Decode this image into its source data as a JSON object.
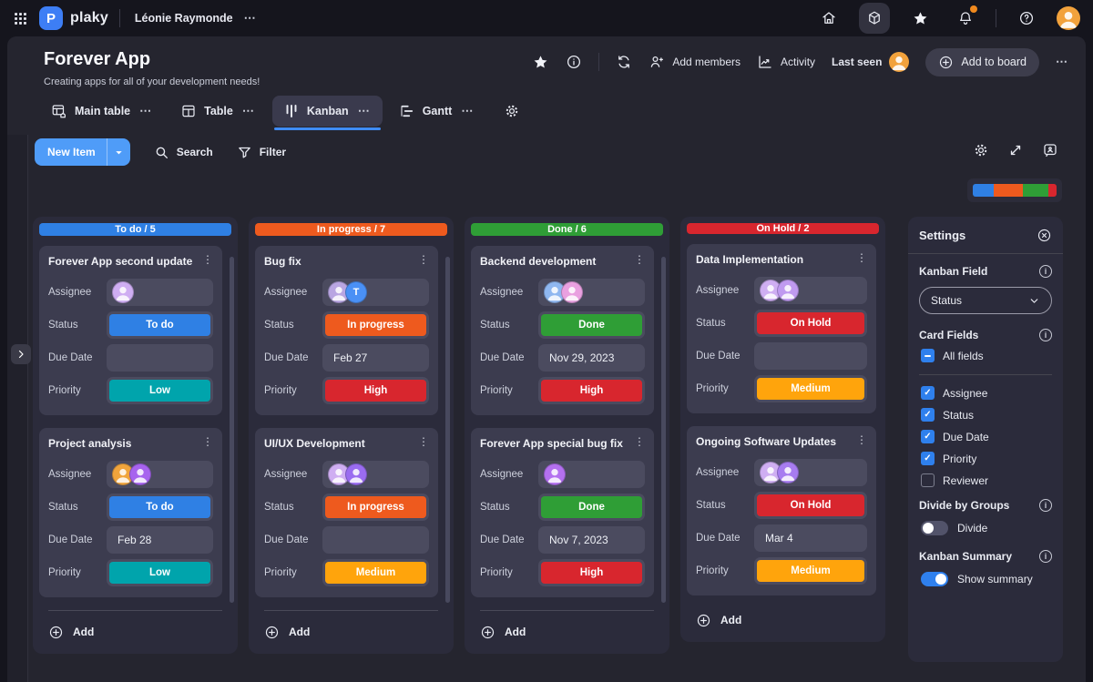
{
  "topbar": {
    "brand": "plaky",
    "workspace": "Léonie Raymonde",
    "more": "⋯",
    "notification_badge": true,
    "accent": "#3d7ef5"
  },
  "header": {
    "title": "Forever App",
    "subtitle": "Creating apps for all of your development needs!",
    "add_members": "Add members",
    "activity": "Activity",
    "last_seen": "Last seen",
    "add_to_board": "Add to board",
    "more": "⋯"
  },
  "tabs": [
    {
      "id": "main-table",
      "label": "Main table",
      "icon": "main-table-icon",
      "active": false
    },
    {
      "id": "table",
      "label": "Table",
      "icon": "table-icon",
      "active": false
    },
    {
      "id": "kanban",
      "label": "Kanban",
      "icon": "kanban-icon",
      "active": true
    },
    {
      "id": "gantt",
      "label": "Gantt",
      "icon": "gantt-icon",
      "active": false
    }
  ],
  "toolbar": {
    "new_item": "New Item",
    "search": "Search",
    "filter": "Filter"
  },
  "summary_bar": {
    "total": 20,
    "segments": [
      {
        "status": "To do",
        "count": 5,
        "color": "#2f80e4"
      },
      {
        "status": "In progress",
        "count": 7,
        "color": "#ee5a1e"
      },
      {
        "status": "Done",
        "count": 6,
        "color": "#2f9e36"
      },
      {
        "status": "On Hold",
        "count": 2,
        "color": "#d8262e"
      }
    ]
  },
  "field_labels": [
    "Assignee",
    "Status",
    "Due Date",
    "Priority"
  ],
  "add_label": "Add",
  "columns": [
    {
      "header": "To do / 5",
      "color": "#2f80e4",
      "scrollbar": true,
      "divider": true,
      "cards": [
        {
          "title": "Forever App second update",
          "assignees": [
            {
              "bg": "#cfaef2"
            }
          ],
          "status": {
            "label": "To do",
            "color": "#2f80e4"
          },
          "due_date": "",
          "priority": {
            "label": "Low",
            "color": "#00a4ac"
          }
        },
        {
          "title": "Project analysis",
          "assignees": [
            {
              "bg": "#f0a43c"
            },
            {
              "bg": "#a763ee"
            }
          ],
          "status": {
            "label": "To do",
            "color": "#2f80e4"
          },
          "due_date": "Feb 28",
          "priority": {
            "label": "Low",
            "color": "#00a4ac"
          }
        }
      ]
    },
    {
      "header": "In progress / 7",
      "color": "#ee5a1e",
      "scrollbar": true,
      "divider": true,
      "cards": [
        {
          "title": "Bug fix",
          "assignees": [
            {
              "bg": "#b9a6e2"
            },
            {
              "bg": "#4a90f5",
              "initial": "T"
            }
          ],
          "status": {
            "label": "In progress",
            "color": "#ee5a1e"
          },
          "due_date": "Feb 27",
          "priority": {
            "label": "High",
            "color": "#d8262e"
          }
        },
        {
          "title": "UI/UX Development",
          "assignees": [
            {
              "bg": "#cfaef2"
            },
            {
              "bg": "#9a6cf0"
            }
          ],
          "status": {
            "label": "In progress",
            "color": "#ee5a1e"
          },
          "due_date": "",
          "priority": {
            "label": "Medium",
            "color": "#ffa40c"
          }
        }
      ]
    },
    {
      "header": "Done / 6",
      "color": "#2f9e36",
      "scrollbar": true,
      "divider": true,
      "cards": [
        {
          "title": "Backend development",
          "assignees": [
            {
              "bg": "#8fb7f0"
            },
            {
              "bg": "#e9a0e0"
            }
          ],
          "status": {
            "label": "Done",
            "color": "#2f9e36"
          },
          "due_date": "Nov 29, 2023",
          "priority": {
            "label": "High",
            "color": "#d8262e"
          }
        },
        {
          "title": "Forever App special bug fix",
          "assignees": [
            {
              "bg": "#b470f0"
            }
          ],
          "status": {
            "label": "Done",
            "color": "#2f9e36"
          },
          "due_date": "Nov 7, 2023",
          "priority": {
            "label": "High",
            "color": "#d8262e"
          }
        }
      ]
    },
    {
      "header": "On Hold / 2",
      "color": "#d8262e",
      "scrollbar": false,
      "divider": false,
      "cards": [
        {
          "title": "Data Implementation",
          "assignees": [
            {
              "bg": "#cfaef2"
            },
            {
              "bg": "#c09af0"
            }
          ],
          "status": {
            "label": "On Hold",
            "color": "#d8262e"
          },
          "due_date": "",
          "priority": {
            "label": "Medium",
            "color": "#ffa40c"
          }
        },
        {
          "title": "Ongoing Software Updates",
          "assignees": [
            {
              "bg": "#cfaef2"
            },
            {
              "bg": "#a77cf0"
            }
          ],
          "status": {
            "label": "On Hold",
            "color": "#d8262e"
          },
          "due_date": "Mar 4",
          "priority": {
            "label": "Medium",
            "color": "#ffa40c"
          }
        }
      ]
    }
  ],
  "settings": {
    "title": "Settings",
    "kanban_field": {
      "label": "Kanban Field",
      "value": "Status"
    },
    "card_fields": {
      "label": "Card Fields",
      "all_fields": {
        "label": "All fields",
        "state": "indeterminate"
      },
      "items": [
        {
          "label": "Assignee",
          "checked": true
        },
        {
          "label": "Status",
          "checked": true
        },
        {
          "label": "Due Date",
          "checked": true
        },
        {
          "label": "Priority",
          "checked": true
        },
        {
          "label": "Reviewer",
          "checked": false
        }
      ]
    },
    "divide_by_groups": {
      "label": "Divide by Groups",
      "toggle_label": "Divide",
      "on": false
    },
    "kanban_summary": {
      "label": "Kanban Summary",
      "toggle_label": "Show summary",
      "on": true
    }
  },
  "icon_names": [
    "apps-grid-icon",
    "plaky-logo",
    "more-icon",
    "home-icon",
    "modules-cube-icon",
    "favorites-star-icon",
    "notifications-bell-icon",
    "help-icon",
    "user-avatar",
    "star-icon",
    "info-icon",
    "sync-icon",
    "add-members-icon",
    "activity-icon",
    "add-plus-icon",
    "main-table-icon",
    "table-icon",
    "kanban-icon",
    "gantt-icon",
    "gear-icon",
    "caret-down-icon",
    "search-icon",
    "filter-icon",
    "expand-icon",
    "feedback-icon",
    "chevron-right-icon",
    "card-menu-icon",
    "close-icon",
    "chevron-down-icon",
    "field-info-icon"
  ]
}
